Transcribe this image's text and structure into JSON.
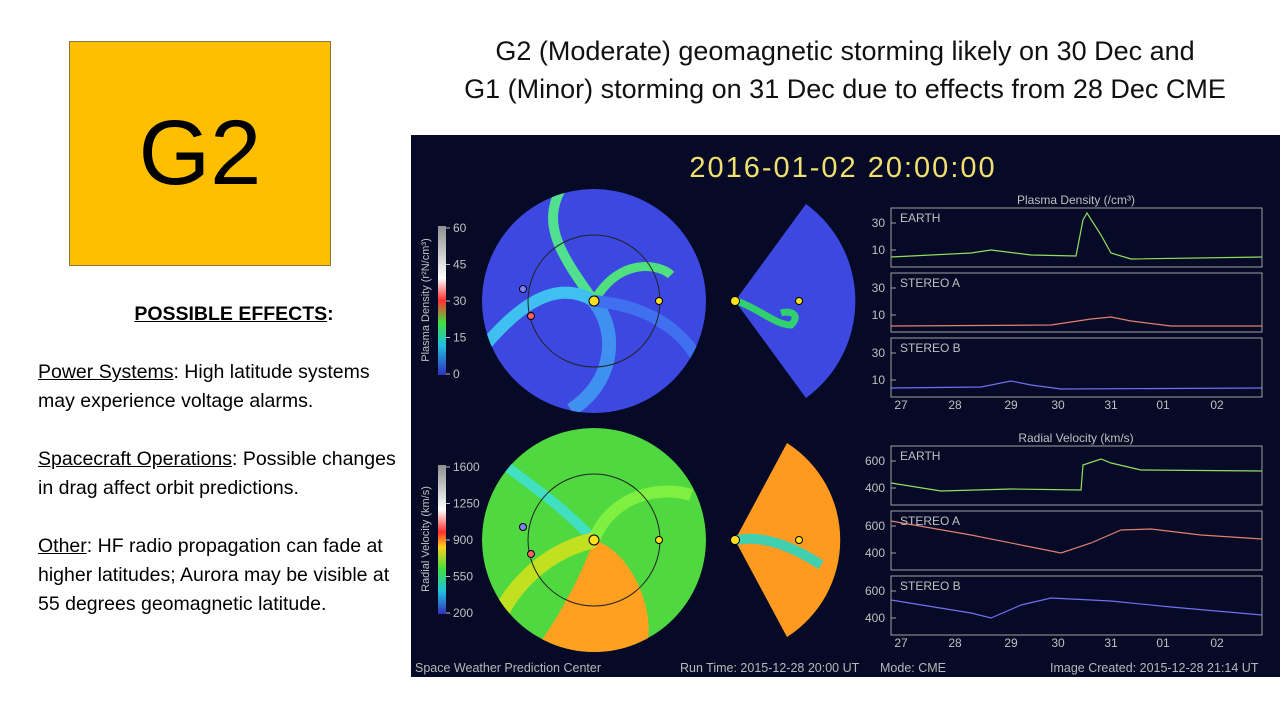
{
  "badge": "G2",
  "title": [
    "G2 (Moderate) geomagnetic storming likely on 30 Dec and",
    "G1 (Minor) storming on 31 Dec due to effects from 28 Dec CME"
  ],
  "effects": {
    "heading": "POSSIBLE EFFECTS",
    "heading_suffix": ":",
    "items": [
      {
        "label": "Power Systems",
        "text": ": High latitude systems may experience voltage alarms."
      },
      {
        "label": "Spacecraft Operations",
        "text": ": Possible changes in drag affect orbit predictions."
      },
      {
        "label": "Other",
        "text": ": HF radio propagation can fade at higher latitudes; Aurora may be visible at 55 degrees geomagnetic latitude."
      }
    ]
  },
  "model": {
    "timestamp": "2016-01-02 20:00:00",
    "density": {
      "colorbar_label": "Plasma Density (r²N/cm³)",
      "colorbar_ticks": [
        "60",
        "45",
        "30",
        "15",
        "0"
      ],
      "plot_title": "Plasma Density (/cm³)",
      "panels": [
        {
          "name": "EARTH",
          "ticks": [
            "30",
            "10"
          ]
        },
        {
          "name": "STEREO A",
          "ticks": [
            "30",
            "10"
          ]
        },
        {
          "name": "STEREO B",
          "ticks": [
            "30",
            "10"
          ]
        }
      ]
    },
    "velocity": {
      "colorbar_label": "Radial Velocity (km/s)",
      "colorbar_ticks": [
        "1600",
        "1250",
        "900",
        "550",
        "200"
      ],
      "plot_title": "Radial Velocity (km/s)",
      "panels": [
        {
          "name": "EARTH",
          "ticks": [
            "600",
            "400"
          ]
        },
        {
          "name": "STEREO A",
          "ticks": [
            "600",
            "400"
          ]
        },
        {
          "name": "STEREO B",
          "ticks": [
            "600",
            "400"
          ]
        }
      ]
    },
    "dates": [
      "27",
      "28",
      "29",
      "30",
      "31",
      "01",
      "02"
    ],
    "footer": [
      "Space Weather Prediction Center",
      "Run Time: 2015-12-28 20:00 UT",
      "Mode: CME",
      "Image Created: 2015-12-28 21:14 UT"
    ]
  }
}
